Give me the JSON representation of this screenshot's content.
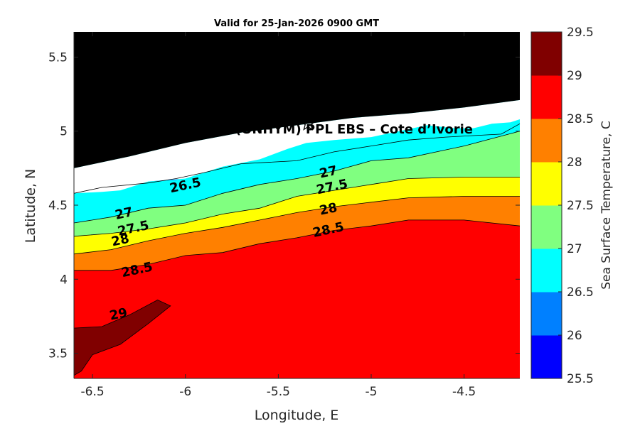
{
  "chart_data": {
    "type": "contour",
    "title": "Valid for 25-Jan-2026 0900 GMT",
    "xlabel": "Longitude, E",
    "ylabel": "Latitude, N",
    "xlim": [
      -6.6,
      -4.2
    ],
    "ylim": [
      3.33,
      5.67
    ],
    "x_ticks": [
      -6.5,
      -6,
      -5.5,
      -5,
      -4.5
    ],
    "x_tick_labels": [
      "-6.5",
      "-6",
      "-5.5",
      "-5",
      "-4.5"
    ],
    "y_ticks": [
      3.5,
      4,
      4.5,
      5,
      5.5
    ],
    "y_tick_labels": [
      "3.5",
      "4",
      "4.5",
      "5",
      "5.5"
    ],
    "variable": "Sea Surface Temperature",
    "units": "C",
    "colorbar": {
      "label": "Sea Surface Temperature, C",
      "levels": [
        25.5,
        26,
        26.5,
        27,
        27.5,
        28,
        28.5,
        29,
        29.5
      ],
      "tick_labels": [
        "25.5",
        "26",
        "26.5",
        "27",
        "27.5",
        "28",
        "28.5",
        "29",
        "29.5"
      ],
      "colors": [
        "#0000ff",
        "#0080ff",
        "#00ffff",
        "#80ff80",
        "#ffff00",
        "#ff8000",
        "#ff0000",
        "#800000"
      ]
    },
    "contour_lines": [
      {
        "level": 26.5,
        "points": [
          [
            -6.6,
            4.58
          ],
          [
            -6.45,
            4.62
          ],
          [
            -6.2,
            4.65
          ],
          [
            -6.05,
            4.68
          ],
          [
            -5.9,
            4.72
          ],
          [
            -5.7,
            4.78
          ],
          [
            -5.4,
            4.8
          ],
          [
            -5.2,
            4.86
          ],
          [
            -5.0,
            4.9
          ],
          [
            -4.8,
            4.94
          ],
          [
            -4.6,
            4.96
          ],
          [
            -4.3,
            4.98
          ],
          [
            -4.2,
            5.05
          ]
        ]
      },
      {
        "level": 27.0,
        "points": [
          [
            -6.6,
            4.38
          ],
          [
            -6.4,
            4.42
          ],
          [
            -6.2,
            4.48
          ],
          [
            -6.0,
            4.5
          ],
          [
            -5.8,
            4.58
          ],
          [
            -5.6,
            4.64
          ],
          [
            -5.4,
            4.68
          ],
          [
            -5.2,
            4.73
          ],
          [
            -5.0,
            4.8
          ],
          [
            -4.8,
            4.82
          ],
          [
            -4.5,
            4.9
          ],
          [
            -4.2,
            5.0
          ]
        ]
      },
      {
        "level": 27.5,
        "points": [
          [
            -6.6,
            4.29
          ],
          [
            -6.4,
            4.31
          ],
          [
            -6.2,
            4.34
          ],
          [
            -6.0,
            4.38
          ],
          [
            -5.8,
            4.44
          ],
          [
            -5.6,
            4.48
          ],
          [
            -5.4,
            4.56
          ],
          [
            -5.2,
            4.6
          ],
          [
            -5.0,
            4.64
          ],
          [
            -4.8,
            4.68
          ],
          [
            -4.5,
            4.69
          ],
          [
            -4.2,
            4.69
          ]
        ]
      },
      {
        "level": 28.0,
        "points": [
          [
            -6.6,
            4.17
          ],
          [
            -6.4,
            4.2
          ],
          [
            -6.2,
            4.26
          ],
          [
            -6.0,
            4.31
          ],
          [
            -5.8,
            4.35
          ],
          [
            -5.6,
            4.4
          ],
          [
            -5.4,
            4.45
          ],
          [
            -5.2,
            4.49
          ],
          [
            -5.0,
            4.52
          ],
          [
            -4.8,
            4.55
          ],
          [
            -4.5,
            4.56
          ],
          [
            -4.2,
            4.56
          ]
        ]
      },
      {
        "level": 28.5,
        "points": [
          [
            -6.6,
            4.06
          ],
          [
            -6.4,
            4.06
          ],
          [
            -6.2,
            4.1
          ],
          [
            -6.0,
            4.16
          ],
          [
            -5.8,
            4.18
          ],
          [
            -5.6,
            4.24
          ],
          [
            -5.4,
            4.28
          ],
          [
            -5.2,
            4.33
          ],
          [
            -5.0,
            4.36
          ],
          [
            -4.8,
            4.4
          ],
          [
            -4.5,
            4.4
          ],
          [
            -4.2,
            4.36
          ]
        ]
      },
      {
        "level": 29.0,
        "points": [
          [
            -6.6,
            3.67
          ],
          [
            -6.45,
            3.68
          ],
          [
            -6.3,
            3.76
          ],
          [
            -6.15,
            3.86
          ],
          [
            -6.08,
            3.82
          ],
          [
            -6.2,
            3.7
          ],
          [
            -6.35,
            3.56
          ],
          [
            -6.5,
            3.49
          ],
          [
            -6.56,
            3.38
          ],
          [
            -6.6,
            3.35
          ]
        ]
      }
    ],
    "contour_labels": [
      {
        "text": "26.5",
        "lon": -6.0,
        "lat": 4.63
      },
      {
        "text": "27",
        "lon": -6.33,
        "lat": 4.44
      },
      {
        "text": "27.5",
        "lon": -6.28,
        "lat": 4.34
      },
      {
        "text": "28",
        "lon": -6.35,
        "lat": 4.26
      },
      {
        "text": "28.5",
        "lon": -6.26,
        "lat": 4.06
      },
      {
        "text": "29",
        "lon": -6.36,
        "lat": 3.76
      },
      {
        "text": "27",
        "lon": -5.23,
        "lat": 4.72
      },
      {
        "text": "27.5",
        "lon": -5.21,
        "lat": 4.62
      },
      {
        "text": "28",
        "lon": -5.23,
        "lat": 4.47
      },
      {
        "text": "28.5",
        "lon": -5.23,
        "lat": 4.33
      }
    ],
    "site": {
      "name": "PPL EBS",
      "lon": -5.34,
      "lat": 5.05,
      "marker": "star"
    },
    "annotation": "A (ONHYM) PPL EBS  – Cote d’Ivorie",
    "land_color": "#000000"
  }
}
